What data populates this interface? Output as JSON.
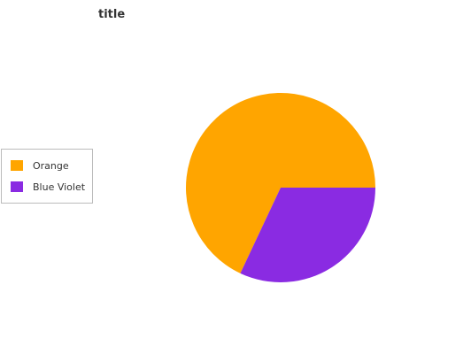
{
  "chart_data": {
    "type": "pie",
    "title": "title",
    "slices": [
      {
        "label": "Orange",
        "value": 68,
        "color": "#FFA500"
      },
      {
        "label": "Blue Violet",
        "value": 32,
        "color": "#8A2BE2"
      }
    ],
    "legend_position": "left"
  }
}
